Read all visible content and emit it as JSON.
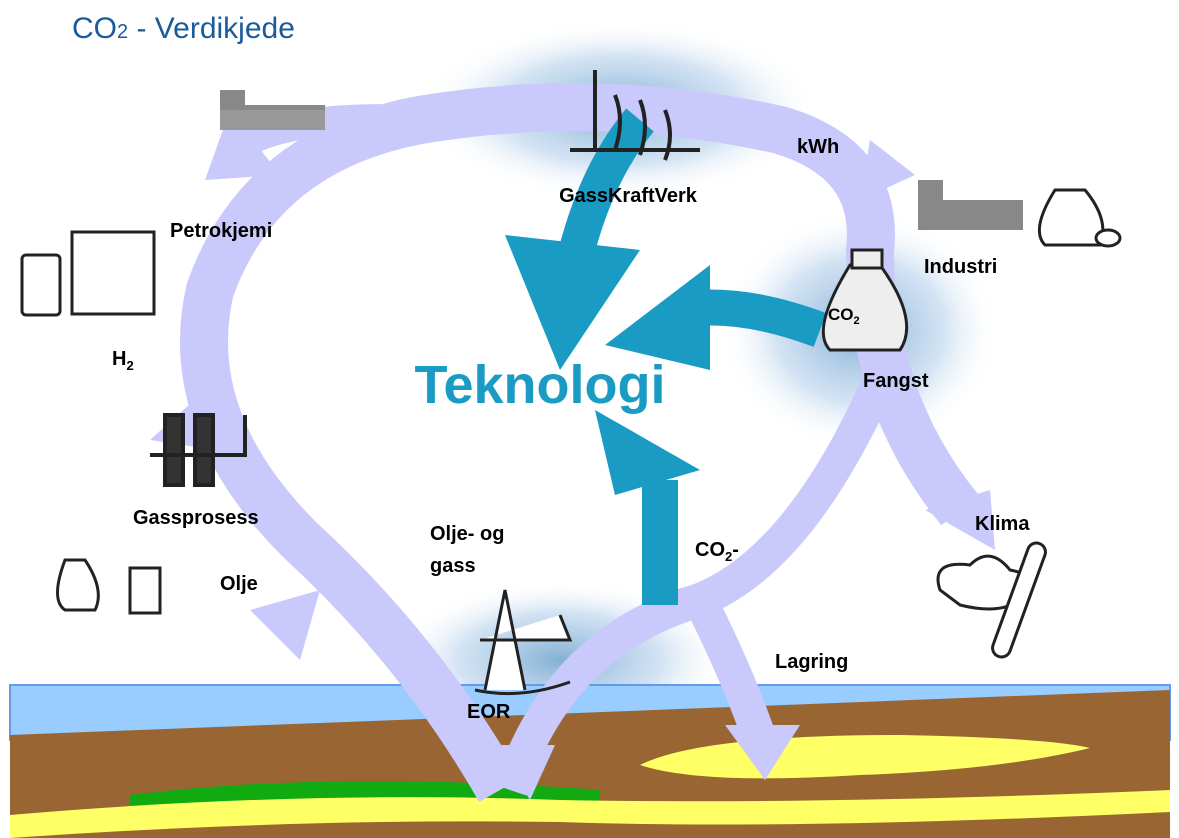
{
  "title": {
    "main": "CO",
    "sub": "2",
    "suffix": " - Verdikjede"
  },
  "center": "Teknologi",
  "labels": {
    "power_plant": "GassKraftVerk",
    "kwh": "kWh",
    "industry": "Industri",
    "petrochem": "Petrokjemi",
    "hydrogen": {
      "main": "H",
      "sub": "2"
    },
    "capture": "Fangst",
    "bag": {
      "main": "CO",
      "sub": "2"
    },
    "gas_process": "Gassprosess",
    "climate": "Klima",
    "oil_gas": [
      "Olje- og",
      "gass"
    ],
    "co2_flow": {
      "main": "CO",
      "sub": "2",
      "suffix": "-"
    },
    "oil": "Olje",
    "storage": "Lagring",
    "eor": "EOR"
  }
}
